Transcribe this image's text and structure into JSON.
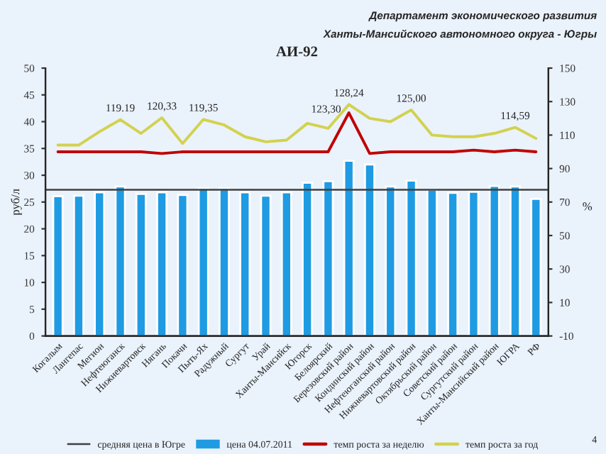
{
  "chart_data": {
    "type": "bar",
    "title": "АИ-92",
    "ylabel": "руб/л",
    "y2label": "%",
    "annotations": [
      "Департамент экономического развития",
      "Ханты-Мансийского автономного округа - Югры",
      "4"
    ],
    "categories": [
      "Когалым",
      "Лангепас",
      "Мегион",
      "Нефтеюганск",
      "Нижневартовск",
      "Нягань",
      "Покачи",
      "Пыть-Ях",
      "Радужный",
      "Сургут",
      "Урай",
      "Ханты-Мансийск",
      "Югорск",
      "Белоярский",
      "Березовский район",
      "Кондинский район",
      "Нефтеюганский район",
      "Нижневартовский район",
      "Октябрьский район",
      "Советский район",
      "Сургутский район",
      "Ханты-Мансийский район",
      "ЮГРА",
      "РФ"
    ],
    "series": [
      {
        "name": "цена 04.07.2011",
        "color": "#1e9be3",
        "values": [
          26.1,
          26.2,
          26.8,
          27.9,
          26.5,
          26.8,
          26.3,
          27.6,
          27.6,
          26.8,
          26.2,
          26.8,
          28.6,
          28.9,
          32.7,
          32.0,
          27.9,
          29.0,
          27.3,
          26.7,
          26.9,
          28.0,
          27.9,
          25.6
        ]
      },
      {
        "name": "темп роста за неделю",
        "type": "line",
        "axis": "y2",
        "color": "#c00000",
        "values": [
          100,
          100,
          100,
          100,
          100,
          99,
          100,
          100,
          100,
          100,
          100,
          100,
          100,
          100,
          123.3,
          99,
          100,
          100,
          100,
          100,
          101,
          100,
          101,
          100
        ],
        "value_labels": [
          null,
          null,
          null,
          null,
          null,
          null,
          null,
          null,
          null,
          null,
          null,
          null,
          null,
          null,
          "123,30",
          null,
          null,
          null,
          null,
          null,
          null,
          null,
          null,
          null
        ]
      },
      {
        "name": "темп роста за год",
        "type": "line",
        "axis": "y2",
        "color": "#d2d24e",
        "values": [
          104,
          104,
          112,
          119.19,
          111,
          120.33,
          105,
          119.35,
          116,
          109,
          106,
          107,
          117,
          114,
          128.24,
          120,
          118,
          125.0,
          110,
          109,
          109,
          111,
          114.59,
          108
        ],
        "value_labels": [
          null,
          null,
          null,
          "119.19",
          null,
          "120,33",
          null,
          "119,35",
          null,
          null,
          null,
          null,
          null,
          null,
          "128,24",
          null,
          null,
          "125,00",
          null,
          null,
          null,
          null,
          "114,59",
          null
        ]
      }
    ],
    "ref_lines": [
      {
        "axis": "y",
        "value": 27.3,
        "label": "средняя цена в Югре",
        "color": "#404040"
      }
    ],
    "ylim": [
      0,
      50
    ],
    "yticks": [
      0,
      5,
      10,
      15,
      20,
      25,
      30,
      35,
      40,
      45,
      50
    ],
    "y2lim": [
      -10,
      150
    ],
    "y2ticks": [
      -10,
      10,
      30,
      50,
      70,
      90,
      110,
      130,
      150
    ],
    "grid": false,
    "legend": "bottom"
  }
}
